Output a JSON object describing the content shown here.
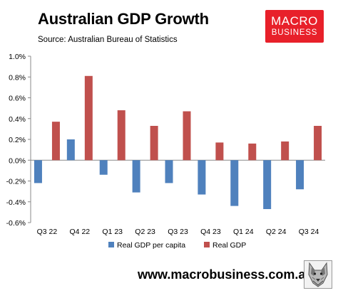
{
  "header": {
    "title": "Australian GDP Growth",
    "subtitle": "Source: Australian Bureau of Statistics"
  },
  "logo": {
    "line1": "MACRO",
    "line2": "BUSINESS",
    "color": "#e8202a"
  },
  "footer": {
    "url": "www.macrobusiness.com.au",
    "wolf_icon": "wolf-head-icon"
  },
  "chart_data": {
    "type": "bar",
    "categories": [
      "Q3 22",
      "Q4 22",
      "Q1 23",
      "Q2 23",
      "Q3 23",
      "Q4 23",
      "Q1 24",
      "Q2 24",
      "Q3 24"
    ],
    "series": [
      {
        "name": "Real GDP per capita",
        "color": "#4f81bd",
        "values": [
          -0.22,
          0.2,
          -0.14,
          -0.31,
          -0.22,
          -0.33,
          -0.44,
          -0.47,
          -0.28
        ]
      },
      {
        "name": "Real GDP",
        "color": "#c0504d",
        "values": [
          0.37,
          0.81,
          0.48,
          0.33,
          0.47,
          0.17,
          0.16,
          0.18,
          0.33
        ]
      }
    ],
    "ylim": [
      -0.6,
      1.0
    ],
    "yticks": [
      -0.6,
      -0.4,
      -0.2,
      0.0,
      0.2,
      0.4,
      0.6,
      0.8,
      1.0
    ],
    "ytick_labels": [
      "-0.6%",
      "-0.4%",
      "-0.2%",
      "0.0%",
      "0.2%",
      "0.4%",
      "0.6%",
      "0.8%",
      "1.0%"
    ],
    "grid": false,
    "legend_position": "bottom"
  }
}
